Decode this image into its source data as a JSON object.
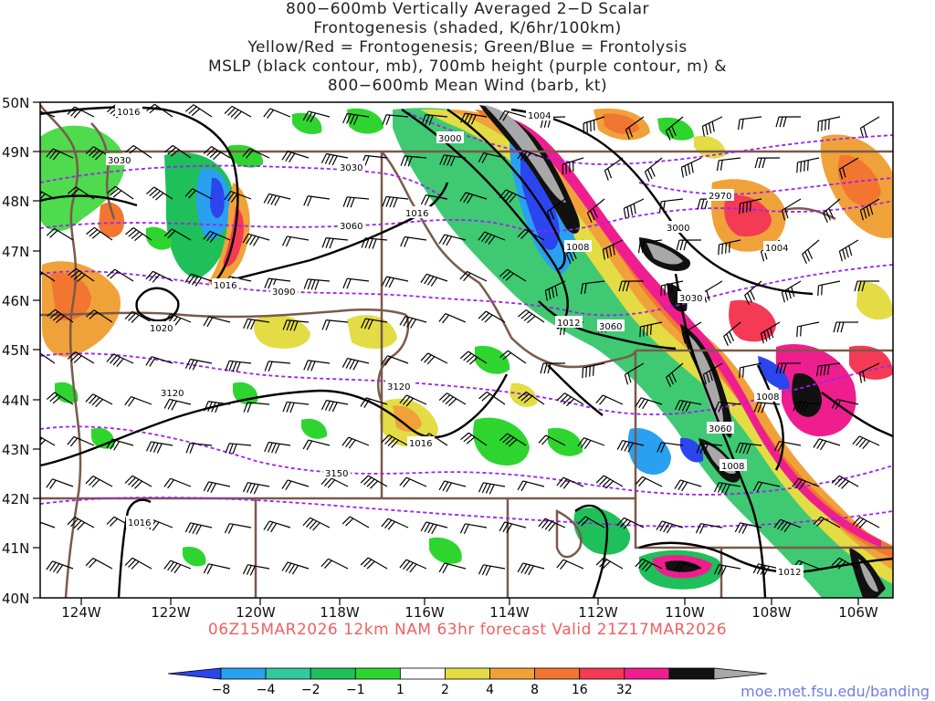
{
  "title_lines": [
    "800−600mb Vertically Averaged 2−D Scalar",
    "Frontogenesis (shaded, K/6hr/100km)",
    "Yellow/Red = Frontogenesis;  Green/Blue = Frontolysis",
    "MSLP (black contour, mb), 700mb height (purple contour, m) &",
    "800−600mb Mean Wind (barb, kt)"
  ],
  "forecast_line": "06Z15MAR2026  12km  NAM  63hr  forecast  Valid  21Z17MAR2026",
  "credit": "moe.met.fsu.edu/banding",
  "lat_labels": [
    "50N",
    "49N",
    "48N",
    "47N",
    "46N",
    "45N",
    "44N",
    "43N",
    "42N",
    "41N",
    "40N"
  ],
  "lon_labels": [
    "124W",
    "122W",
    "120W",
    "118W",
    "116W",
    "114W",
    "112W",
    "110W",
    "108W",
    "106W"
  ],
  "colorbar": {
    "labels": [
      "−8",
      "−4",
      "−2",
      "−1",
      "1",
      "2",
      "4",
      "8",
      "16",
      "32"
    ],
    "colors": [
      "#2b46ee",
      "#2aa0f0",
      "#33c9a0",
      "#1fbf5a",
      "#2fd52f",
      "#ffffff",
      "#e3dc45",
      "#f0a23a",
      "#f27630",
      "#f53a55",
      "#ef1e8f",
      "#111111",
      "#a8a8a8"
    ]
  },
  "mslp_labels": [
    "1016",
    "1004",
    "1008",
    "1016",
    "1020",
    "1012",
    "1016",
    "1016",
    "1008",
    "1008",
    "1016",
    "1012",
    "1004"
  ],
  "height_labels": [
    "3000",
    "3030",
    "3030",
    "3060",
    "3090",
    "3000",
    "2970",
    "3030",
    "3060",
    "3120",
    "3120",
    "3060",
    "3150"
  ]
}
